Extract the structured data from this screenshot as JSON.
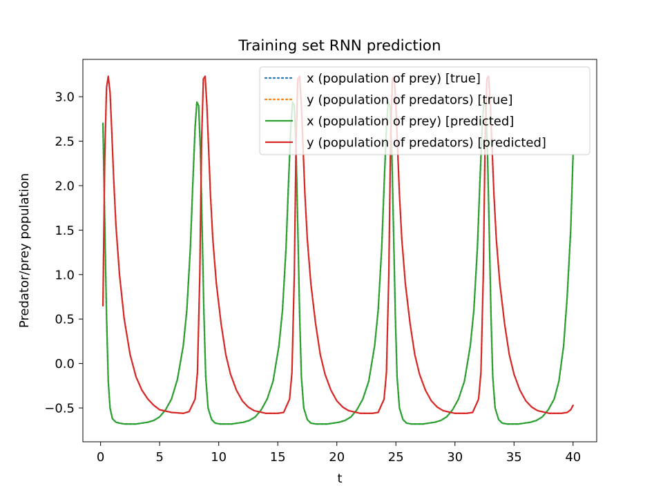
{
  "chart_data": {
    "type": "line",
    "title": "Training set RNN prediction",
    "xlabel": "t",
    "ylabel": "Predator/prey population",
    "xlim": [
      -1.5,
      42
    ],
    "ylim": [
      -0.88,
      3.42
    ],
    "xticks": [
      0,
      5,
      10,
      15,
      20,
      25,
      30,
      35,
      40
    ],
    "xtick_labels": [
      "0",
      "5",
      "10",
      "15",
      "20",
      "25",
      "30",
      "35",
      "40"
    ],
    "yticks": [
      -0.5,
      0.0,
      0.5,
      1.0,
      1.5,
      2.0,
      2.5,
      3.0
    ],
    "ytick_labels": [
      "−0.5",
      "0.0",
      "0.5",
      "1.0",
      "1.5",
      "2.0",
      "2.5",
      "3.0"
    ],
    "grid": false,
    "legend_position": "upper-right",
    "series": [
      {
        "name": "x (population of prey) [true]",
        "color": "#1f77b4",
        "style": "dotted",
        "x": [
          0.2,
          0.35,
          0.5,
          0.65,
          0.8,
          1.0,
          1.3,
          1.6,
          2.0,
          2.5,
          3.0,
          3.5,
          4.0,
          4.5,
          5.0,
          5.5,
          6.0,
          6.5,
          7.0,
          7.3,
          7.6,
          7.8,
          8.0,
          8.15,
          8.3,
          8.45,
          8.6,
          8.75,
          8.9,
          9.1,
          9.4,
          9.7,
          10.1,
          10.6,
          11.1,
          11.6,
          12.1,
          12.6,
          13.1,
          13.6,
          14.1,
          14.6,
          15.1,
          15.4,
          15.7,
          15.9,
          16.1,
          16.25,
          16.4,
          16.55,
          16.7,
          16.85,
          17.0,
          17.2,
          17.5,
          17.8,
          18.2,
          18.7,
          19.2,
          19.7,
          20.2,
          20.7,
          21.2,
          21.7,
          22.2,
          22.7,
          23.2,
          23.5,
          23.8,
          24.0,
          24.2,
          24.35,
          24.5,
          24.65,
          24.8,
          24.95,
          25.1,
          25.3,
          25.6,
          25.9,
          26.3,
          26.8,
          27.3,
          27.8,
          28.3,
          28.8,
          29.3,
          29.8,
          30.3,
          30.8,
          31.3,
          31.6,
          31.9,
          32.1,
          32.3,
          32.45,
          32.6,
          32.75,
          32.9,
          33.05,
          33.2,
          33.4,
          33.7,
          34.0,
          34.4,
          34.9,
          35.4,
          35.9,
          36.4,
          36.9,
          37.4,
          37.9,
          38.4,
          38.8,
          39.2,
          39.5,
          39.8,
          40.0
        ],
        "y": [
          2.7,
          1.6,
          0.55,
          -0.2,
          -0.5,
          -0.62,
          -0.66,
          -0.67,
          -0.68,
          -0.68,
          -0.68,
          -0.67,
          -0.66,
          -0.64,
          -0.6,
          -0.52,
          -0.4,
          -0.18,
          0.2,
          0.6,
          1.3,
          2.0,
          2.65,
          2.94,
          2.9,
          2.4,
          1.5,
          0.55,
          -0.15,
          -0.5,
          -0.63,
          -0.67,
          -0.68,
          -0.68,
          -0.68,
          -0.67,
          -0.66,
          -0.64,
          -0.6,
          -0.52,
          -0.4,
          -0.2,
          0.2,
          0.6,
          1.3,
          2.0,
          2.65,
          2.94,
          2.9,
          2.4,
          1.5,
          0.55,
          -0.15,
          -0.5,
          -0.63,
          -0.67,
          -0.68,
          -0.68,
          -0.68,
          -0.67,
          -0.66,
          -0.64,
          -0.6,
          -0.52,
          -0.4,
          -0.2,
          0.2,
          0.6,
          1.3,
          2.0,
          2.65,
          2.94,
          2.9,
          2.4,
          1.5,
          0.55,
          -0.15,
          -0.5,
          -0.63,
          -0.67,
          -0.68,
          -0.68,
          -0.68,
          -0.67,
          -0.66,
          -0.64,
          -0.6,
          -0.52,
          -0.4,
          -0.2,
          0.2,
          0.6,
          1.3,
          2.0,
          2.65,
          2.94,
          2.9,
          2.4,
          1.5,
          0.55,
          -0.15,
          -0.5,
          -0.63,
          -0.67,
          -0.68,
          -0.68,
          -0.68,
          -0.67,
          -0.66,
          -0.64,
          -0.6,
          -0.52,
          -0.4,
          -0.2,
          0.2,
          0.75,
          1.5,
          2.35
        ]
      },
      {
        "name": "y (population of predators) [true]",
        "color": "#ff7f0e",
        "style": "dotted",
        "x": [
          0.2,
          0.35,
          0.5,
          0.65,
          0.8,
          0.95,
          1.1,
          1.3,
          1.6,
          2.0,
          2.5,
          3.0,
          3.5,
          4.0,
          4.5,
          5.0,
          6.0,
          7.0,
          7.5,
          8.0,
          8.2,
          8.4,
          8.55,
          8.7,
          8.85,
          9.0,
          9.15,
          9.3,
          9.5,
          9.8,
          10.2,
          10.6,
          11.0,
          11.5,
          12.0,
          12.5,
          13.0,
          14.0,
          15.0,
          15.5,
          16.0,
          16.2,
          16.4,
          16.55,
          16.7,
          16.85,
          17.0,
          17.15,
          17.3,
          17.5,
          17.8,
          18.2,
          18.6,
          19.0,
          19.5,
          20.0,
          20.5,
          21.0,
          22.0,
          23.0,
          23.5,
          24.0,
          24.2,
          24.4,
          24.55,
          24.7,
          24.85,
          25.0,
          25.15,
          25.3,
          25.5,
          25.8,
          26.2,
          26.6,
          27.0,
          27.5,
          28.0,
          28.5,
          29.0,
          30.0,
          31.0,
          31.5,
          32.0,
          32.2,
          32.4,
          32.55,
          32.7,
          32.85,
          33.0,
          33.15,
          33.3,
          33.5,
          33.8,
          34.2,
          34.6,
          35.0,
          35.5,
          36.0,
          36.5,
          37.0,
          38.0,
          39.0,
          39.5,
          39.8,
          40.0
        ],
        "y": [
          0.65,
          2.3,
          3.1,
          3.23,
          3.05,
          2.6,
          2.1,
          1.55,
          1.0,
          0.5,
          0.1,
          -0.15,
          -0.3,
          -0.4,
          -0.47,
          -0.52,
          -0.55,
          -0.56,
          -0.54,
          -0.4,
          -0.1,
          1.0,
          2.5,
          3.2,
          3.23,
          2.9,
          2.4,
          1.9,
          1.4,
          0.9,
          0.45,
          0.1,
          -0.12,
          -0.3,
          -0.42,
          -0.49,
          -0.53,
          -0.56,
          -0.56,
          -0.55,
          -0.4,
          -0.1,
          1.0,
          2.5,
          3.2,
          3.23,
          2.9,
          2.4,
          1.9,
          1.4,
          0.9,
          0.45,
          0.1,
          -0.12,
          -0.3,
          -0.42,
          -0.49,
          -0.53,
          -0.56,
          -0.56,
          -0.55,
          -0.4,
          -0.1,
          1.0,
          2.5,
          3.2,
          3.23,
          2.9,
          2.4,
          1.9,
          1.4,
          0.9,
          0.45,
          0.1,
          -0.12,
          -0.3,
          -0.42,
          -0.49,
          -0.53,
          -0.56,
          -0.56,
          -0.55,
          -0.4,
          -0.1,
          1.0,
          2.5,
          3.2,
          3.23,
          2.9,
          2.4,
          1.9,
          1.4,
          0.9,
          0.45,
          0.1,
          -0.12,
          -0.3,
          -0.42,
          -0.49,
          -0.53,
          -0.56,
          -0.56,
          -0.55,
          -0.52,
          -0.47
        ]
      },
      {
        "name": "x (population of prey) [predicted]",
        "color": "#2ca02c",
        "style": "solid",
        "x": [
          0.2,
          0.35,
          0.5,
          0.65,
          0.8,
          1.0,
          1.3,
          1.6,
          2.0,
          2.5,
          3.0,
          3.5,
          4.0,
          4.5,
          5.0,
          5.5,
          6.0,
          6.5,
          7.0,
          7.3,
          7.6,
          7.8,
          8.0,
          8.15,
          8.3,
          8.45,
          8.6,
          8.75,
          8.9,
          9.1,
          9.4,
          9.7,
          10.1,
          10.6,
          11.1,
          11.6,
          12.1,
          12.6,
          13.1,
          13.6,
          14.1,
          14.6,
          15.1,
          15.4,
          15.7,
          15.9,
          16.1,
          16.25,
          16.4,
          16.55,
          16.7,
          16.85,
          17.0,
          17.2,
          17.5,
          17.8,
          18.2,
          18.7,
          19.2,
          19.7,
          20.2,
          20.7,
          21.2,
          21.7,
          22.2,
          22.7,
          23.2,
          23.5,
          23.8,
          24.0,
          24.2,
          24.35,
          24.5,
          24.65,
          24.8,
          24.95,
          25.1,
          25.3,
          25.6,
          25.9,
          26.3,
          26.8,
          27.3,
          27.8,
          28.3,
          28.8,
          29.3,
          29.8,
          30.3,
          30.8,
          31.3,
          31.6,
          31.9,
          32.1,
          32.3,
          32.45,
          32.6,
          32.75,
          32.9,
          33.05,
          33.2,
          33.4,
          33.7,
          34.0,
          34.4,
          34.9,
          35.4,
          35.9,
          36.4,
          36.9,
          37.4,
          37.9,
          38.4,
          38.8,
          39.2,
          39.5,
          39.8,
          40.0
        ],
        "y": [
          2.7,
          1.6,
          0.55,
          -0.2,
          -0.5,
          -0.62,
          -0.66,
          -0.67,
          -0.68,
          -0.68,
          -0.68,
          -0.67,
          -0.66,
          -0.64,
          -0.6,
          -0.52,
          -0.4,
          -0.18,
          0.2,
          0.6,
          1.3,
          2.0,
          2.65,
          2.94,
          2.9,
          2.4,
          1.5,
          0.55,
          -0.15,
          -0.5,
          -0.63,
          -0.67,
          -0.68,
          -0.68,
          -0.68,
          -0.67,
          -0.66,
          -0.64,
          -0.6,
          -0.52,
          -0.4,
          -0.2,
          0.2,
          0.6,
          1.3,
          2.0,
          2.65,
          2.94,
          2.9,
          2.4,
          1.5,
          0.55,
          -0.15,
          -0.5,
          -0.63,
          -0.67,
          -0.68,
          -0.68,
          -0.68,
          -0.67,
          -0.66,
          -0.64,
          -0.6,
          -0.52,
          -0.4,
          -0.2,
          0.2,
          0.6,
          1.3,
          2.0,
          2.65,
          2.94,
          2.9,
          2.4,
          1.5,
          0.55,
          -0.15,
          -0.5,
          -0.63,
          -0.67,
          -0.68,
          -0.68,
          -0.68,
          -0.67,
          -0.66,
          -0.64,
          -0.6,
          -0.52,
          -0.4,
          -0.2,
          0.2,
          0.6,
          1.3,
          2.0,
          2.65,
          2.94,
          2.9,
          2.4,
          1.5,
          0.55,
          -0.15,
          -0.5,
          -0.63,
          -0.67,
          -0.68,
          -0.68,
          -0.68,
          -0.67,
          -0.66,
          -0.64,
          -0.6,
          -0.52,
          -0.4,
          -0.2,
          0.2,
          0.75,
          1.5,
          2.35
        ]
      },
      {
        "name": "y (population of predators) [predicted]",
        "color": "#d62728",
        "style": "solid",
        "x": [
          0.2,
          0.35,
          0.5,
          0.65,
          0.8,
          0.95,
          1.1,
          1.3,
          1.6,
          2.0,
          2.5,
          3.0,
          3.5,
          4.0,
          4.5,
          5.0,
          6.0,
          7.0,
          7.5,
          8.0,
          8.2,
          8.4,
          8.55,
          8.7,
          8.85,
          9.0,
          9.15,
          9.3,
          9.5,
          9.8,
          10.2,
          10.6,
          11.0,
          11.5,
          12.0,
          12.5,
          13.0,
          14.0,
          15.0,
          15.5,
          16.0,
          16.2,
          16.4,
          16.55,
          16.7,
          16.85,
          17.0,
          17.15,
          17.3,
          17.5,
          17.8,
          18.2,
          18.6,
          19.0,
          19.5,
          20.0,
          20.5,
          21.0,
          22.0,
          23.0,
          23.5,
          24.0,
          24.2,
          24.4,
          24.55,
          24.7,
          24.85,
          25.0,
          25.15,
          25.3,
          25.5,
          25.8,
          26.2,
          26.6,
          27.0,
          27.5,
          28.0,
          28.5,
          29.0,
          30.0,
          31.0,
          31.5,
          32.0,
          32.2,
          32.4,
          32.55,
          32.7,
          32.85,
          33.0,
          33.15,
          33.3,
          33.5,
          33.8,
          34.2,
          34.6,
          35.0,
          35.5,
          36.0,
          36.5,
          37.0,
          38.0,
          39.0,
          39.5,
          39.8,
          40.0
        ],
        "y": [
          0.65,
          2.3,
          3.1,
          3.23,
          3.05,
          2.6,
          2.1,
          1.55,
          1.0,
          0.5,
          0.1,
          -0.15,
          -0.3,
          -0.4,
          -0.47,
          -0.52,
          -0.55,
          -0.56,
          -0.54,
          -0.4,
          -0.1,
          1.0,
          2.5,
          3.2,
          3.23,
          2.9,
          2.4,
          1.9,
          1.4,
          0.9,
          0.45,
          0.1,
          -0.12,
          -0.3,
          -0.42,
          -0.49,
          -0.53,
          -0.56,
          -0.56,
          -0.55,
          -0.4,
          -0.1,
          1.0,
          2.5,
          3.2,
          3.23,
          2.9,
          2.4,
          1.9,
          1.4,
          0.9,
          0.45,
          0.1,
          -0.12,
          -0.3,
          -0.42,
          -0.49,
          -0.53,
          -0.56,
          -0.56,
          -0.55,
          -0.4,
          -0.1,
          1.0,
          2.5,
          3.2,
          3.23,
          2.9,
          2.4,
          1.9,
          1.4,
          0.9,
          0.45,
          0.1,
          -0.12,
          -0.3,
          -0.42,
          -0.49,
          -0.53,
          -0.56,
          -0.56,
          -0.55,
          -0.4,
          -0.1,
          1.0,
          2.5,
          3.2,
          3.23,
          2.9,
          2.4,
          1.9,
          1.4,
          0.9,
          0.45,
          0.1,
          -0.12,
          -0.3,
          -0.42,
          -0.49,
          -0.53,
          -0.56,
          -0.56,
          -0.55,
          -0.52,
          -0.47
        ]
      }
    ]
  }
}
